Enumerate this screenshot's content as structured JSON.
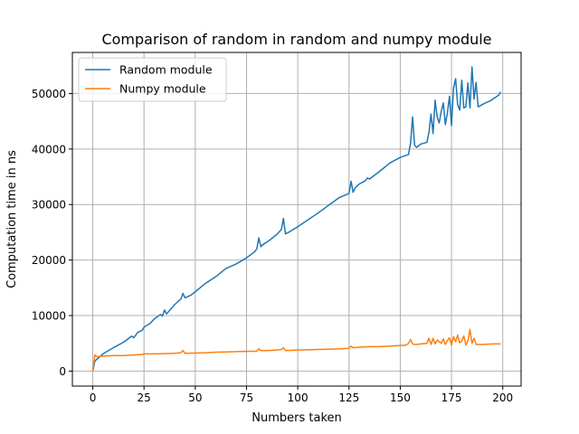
{
  "chart_data": {
    "type": "line",
    "title": "Comparison of random in random and numpy module",
    "xlabel": "Numbers taken",
    "ylabel": "Computation time in ns",
    "xlim": [
      -9.95,
      208.95
    ],
    "ylim": [
      -2700,
      57400
    ],
    "xticks": [
      0,
      25,
      50,
      75,
      100,
      125,
      150,
      175,
      200
    ],
    "xtick_labels": [
      "0",
      "25",
      "50",
      "75",
      "100",
      "125",
      "150",
      "175",
      "200"
    ],
    "yticks": [
      0,
      10000,
      20000,
      30000,
      40000,
      50000
    ],
    "ytick_labels": [
      "0",
      "10000",
      "20000",
      "30000",
      "40000",
      "50000"
    ],
    "grid": true,
    "legend": {
      "placement": "upper-left"
    },
    "series": [
      {
        "name": "Random module",
        "color": "#1f77b4",
        "x": [
          0,
          1,
          5,
          10,
          15,
          19,
          20,
          22,
          24,
          25,
          28,
          30,
          33,
          34,
          35,
          36,
          40,
          43,
          44,
          45,
          48,
          50,
          55,
          60,
          65,
          70,
          75,
          79,
          80,
          81,
          82,
          83,
          86,
          90,
          92,
          93,
          94,
          96,
          100,
          110,
          120,
          125,
          126,
          127,
          128,
          130,
          133,
          134,
          135,
          140,
          145,
          150,
          154,
          155,
          156,
          157,
          158,
          160,
          163,
          164,
          165,
          166,
          167,
          168,
          169,
          170,
          171,
          172,
          173,
          174,
          175,
          176,
          177,
          178,
          179,
          180,
          181,
          182,
          183,
          184,
          185,
          186,
          187,
          188,
          190,
          192,
          194,
          196,
          198,
          199
        ],
        "values": [
          0,
          1800,
          3100,
          4200,
          5200,
          6300,
          6000,
          7000,
          7300,
          7900,
          8600,
          9400,
          10200,
          9900,
          11000,
          10300,
          12000,
          13000,
          14000,
          13200,
          13700,
          14300,
          15800,
          17000,
          18500,
          19300,
          20400,
          21500,
          22000,
          24000,
          22400,
          22800,
          23500,
          24700,
          25500,
          27500,
          24700,
          25100,
          26000,
          28500,
          31200,
          32000,
          34200,
          32200,
          33000,
          33700,
          34300,
          34800,
          34600,
          36000,
          37500,
          38500,
          39000,
          41000,
          45800,
          40700,
          40300,
          40900,
          41200,
          43000,
          46300,
          42800,
          48800,
          45800,
          44700,
          46800,
          48300,
          44400,
          46500,
          49500,
          44200,
          51000,
          52700,
          48000,
          47000,
          52400,
          47400,
          47600,
          51900,
          47400,
          54800,
          49000,
          52000,
          47600,
          48000,
          48400,
          48700,
          49200,
          49700,
          50300
        ]
      },
      {
        "name": "Numpy module",
        "color": "#ff7f0e",
        "x": [
          0,
          1,
          2,
          5,
          10,
          15,
          20,
          24,
          25,
          30,
          35,
          40,
          43,
          44,
          45,
          50,
          55,
          60,
          65,
          70,
          75,
          80,
          81,
          82,
          85,
          90,
          92,
          93,
          94,
          100,
          110,
          120,
          125,
          126,
          127,
          130,
          135,
          140,
          145,
          150,
          153,
          154,
          155,
          156,
          157,
          158,
          160,
          163,
          164,
          165,
          166,
          167,
          168,
          169,
          170,
          171,
          172,
          173,
          174,
          175,
          176,
          177,
          178,
          179,
          180,
          181,
          182,
          183,
          184,
          185,
          186,
          187,
          190,
          195,
          199
        ],
        "values": [
          0,
          2900,
          2600,
          2700,
          2800,
          2800,
          2900,
          3000,
          3100,
          3100,
          3150,
          3200,
          3300,
          3700,
          3200,
          3250,
          3300,
          3400,
          3450,
          3500,
          3550,
          3600,
          4000,
          3700,
          3700,
          3800,
          3900,
          4200,
          3700,
          3800,
          3900,
          4000,
          4100,
          4500,
          4200,
          4300,
          4400,
          4400,
          4500,
          4600,
          4700,
          5000,
          5700,
          4900,
          4800,
          4800,
          4900,
          5000,
          5900,
          4800,
          5900,
          4900,
          5600,
          5300,
          5000,
          5800,
          4800,
          5500,
          6000,
          4700,
          6200,
          5300,
          6500,
          5100,
          5400,
          6300,
          4700,
          5400,
          7500,
          5000,
          5900,
          4800,
          4800,
          4900,
          4900
        ]
      }
    ]
  }
}
